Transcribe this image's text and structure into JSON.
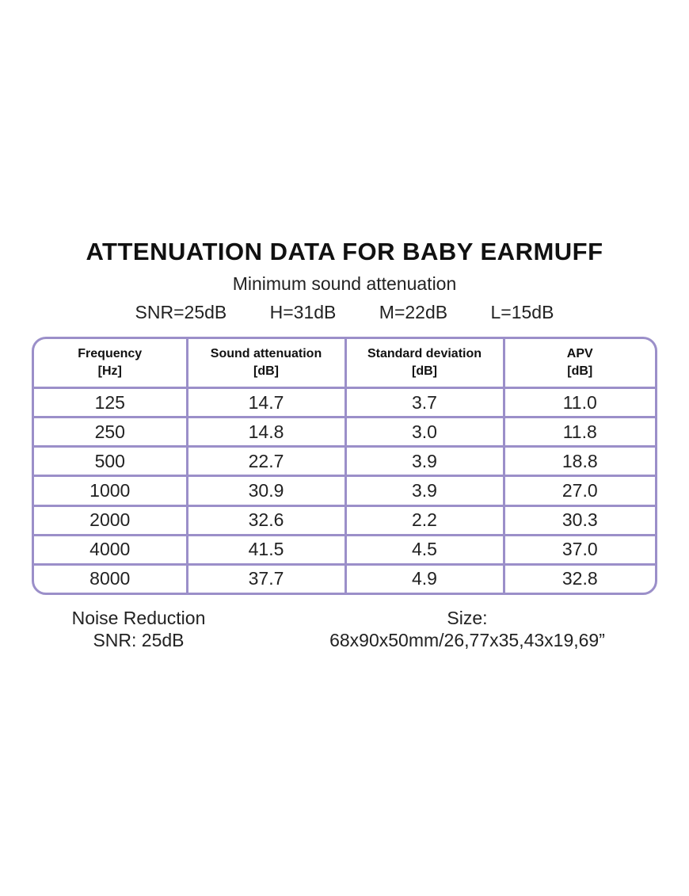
{
  "title": "ATTENUATION DATA FOR BABY EARMUFF",
  "subtitle": "Minimum sound attenuation",
  "ratings": [
    "SNR=25dB",
    "H=31dB",
    "M=22dB",
    "L=15dB"
  ],
  "table": {
    "headers": [
      {
        "name": "Frequency",
        "unit": "[Hz]"
      },
      {
        "name": "Sound attenuation",
        "unit": "[dB]"
      },
      {
        "name": "Standard deviation",
        "unit": "[dB]"
      },
      {
        "name": "APV",
        "unit": "[dB]"
      }
    ],
    "rows": [
      [
        "125",
        "14.7",
        "3.7",
        "11.0"
      ],
      [
        "250",
        "14.8",
        "3.0",
        "11.8"
      ],
      [
        "500",
        "22.7",
        "3.9",
        "18.8"
      ],
      [
        "1000",
        "30.9",
        "3.9",
        "27.0"
      ],
      [
        "2000",
        "32.6",
        "2.2",
        "30.3"
      ],
      [
        "4000",
        "41.5",
        "4.5",
        "37.0"
      ],
      [
        "8000",
        "37.7",
        "4.9",
        "32.8"
      ]
    ]
  },
  "footer": {
    "noise_label": "Noise Reduction",
    "noise_value": "SNR: 25dB",
    "size_label": "Size:",
    "size_value": "68x90x50mm/26,77x35,43x19,69”"
  },
  "colors": {
    "table_border": "#9b8fc9",
    "text": "#111111"
  }
}
